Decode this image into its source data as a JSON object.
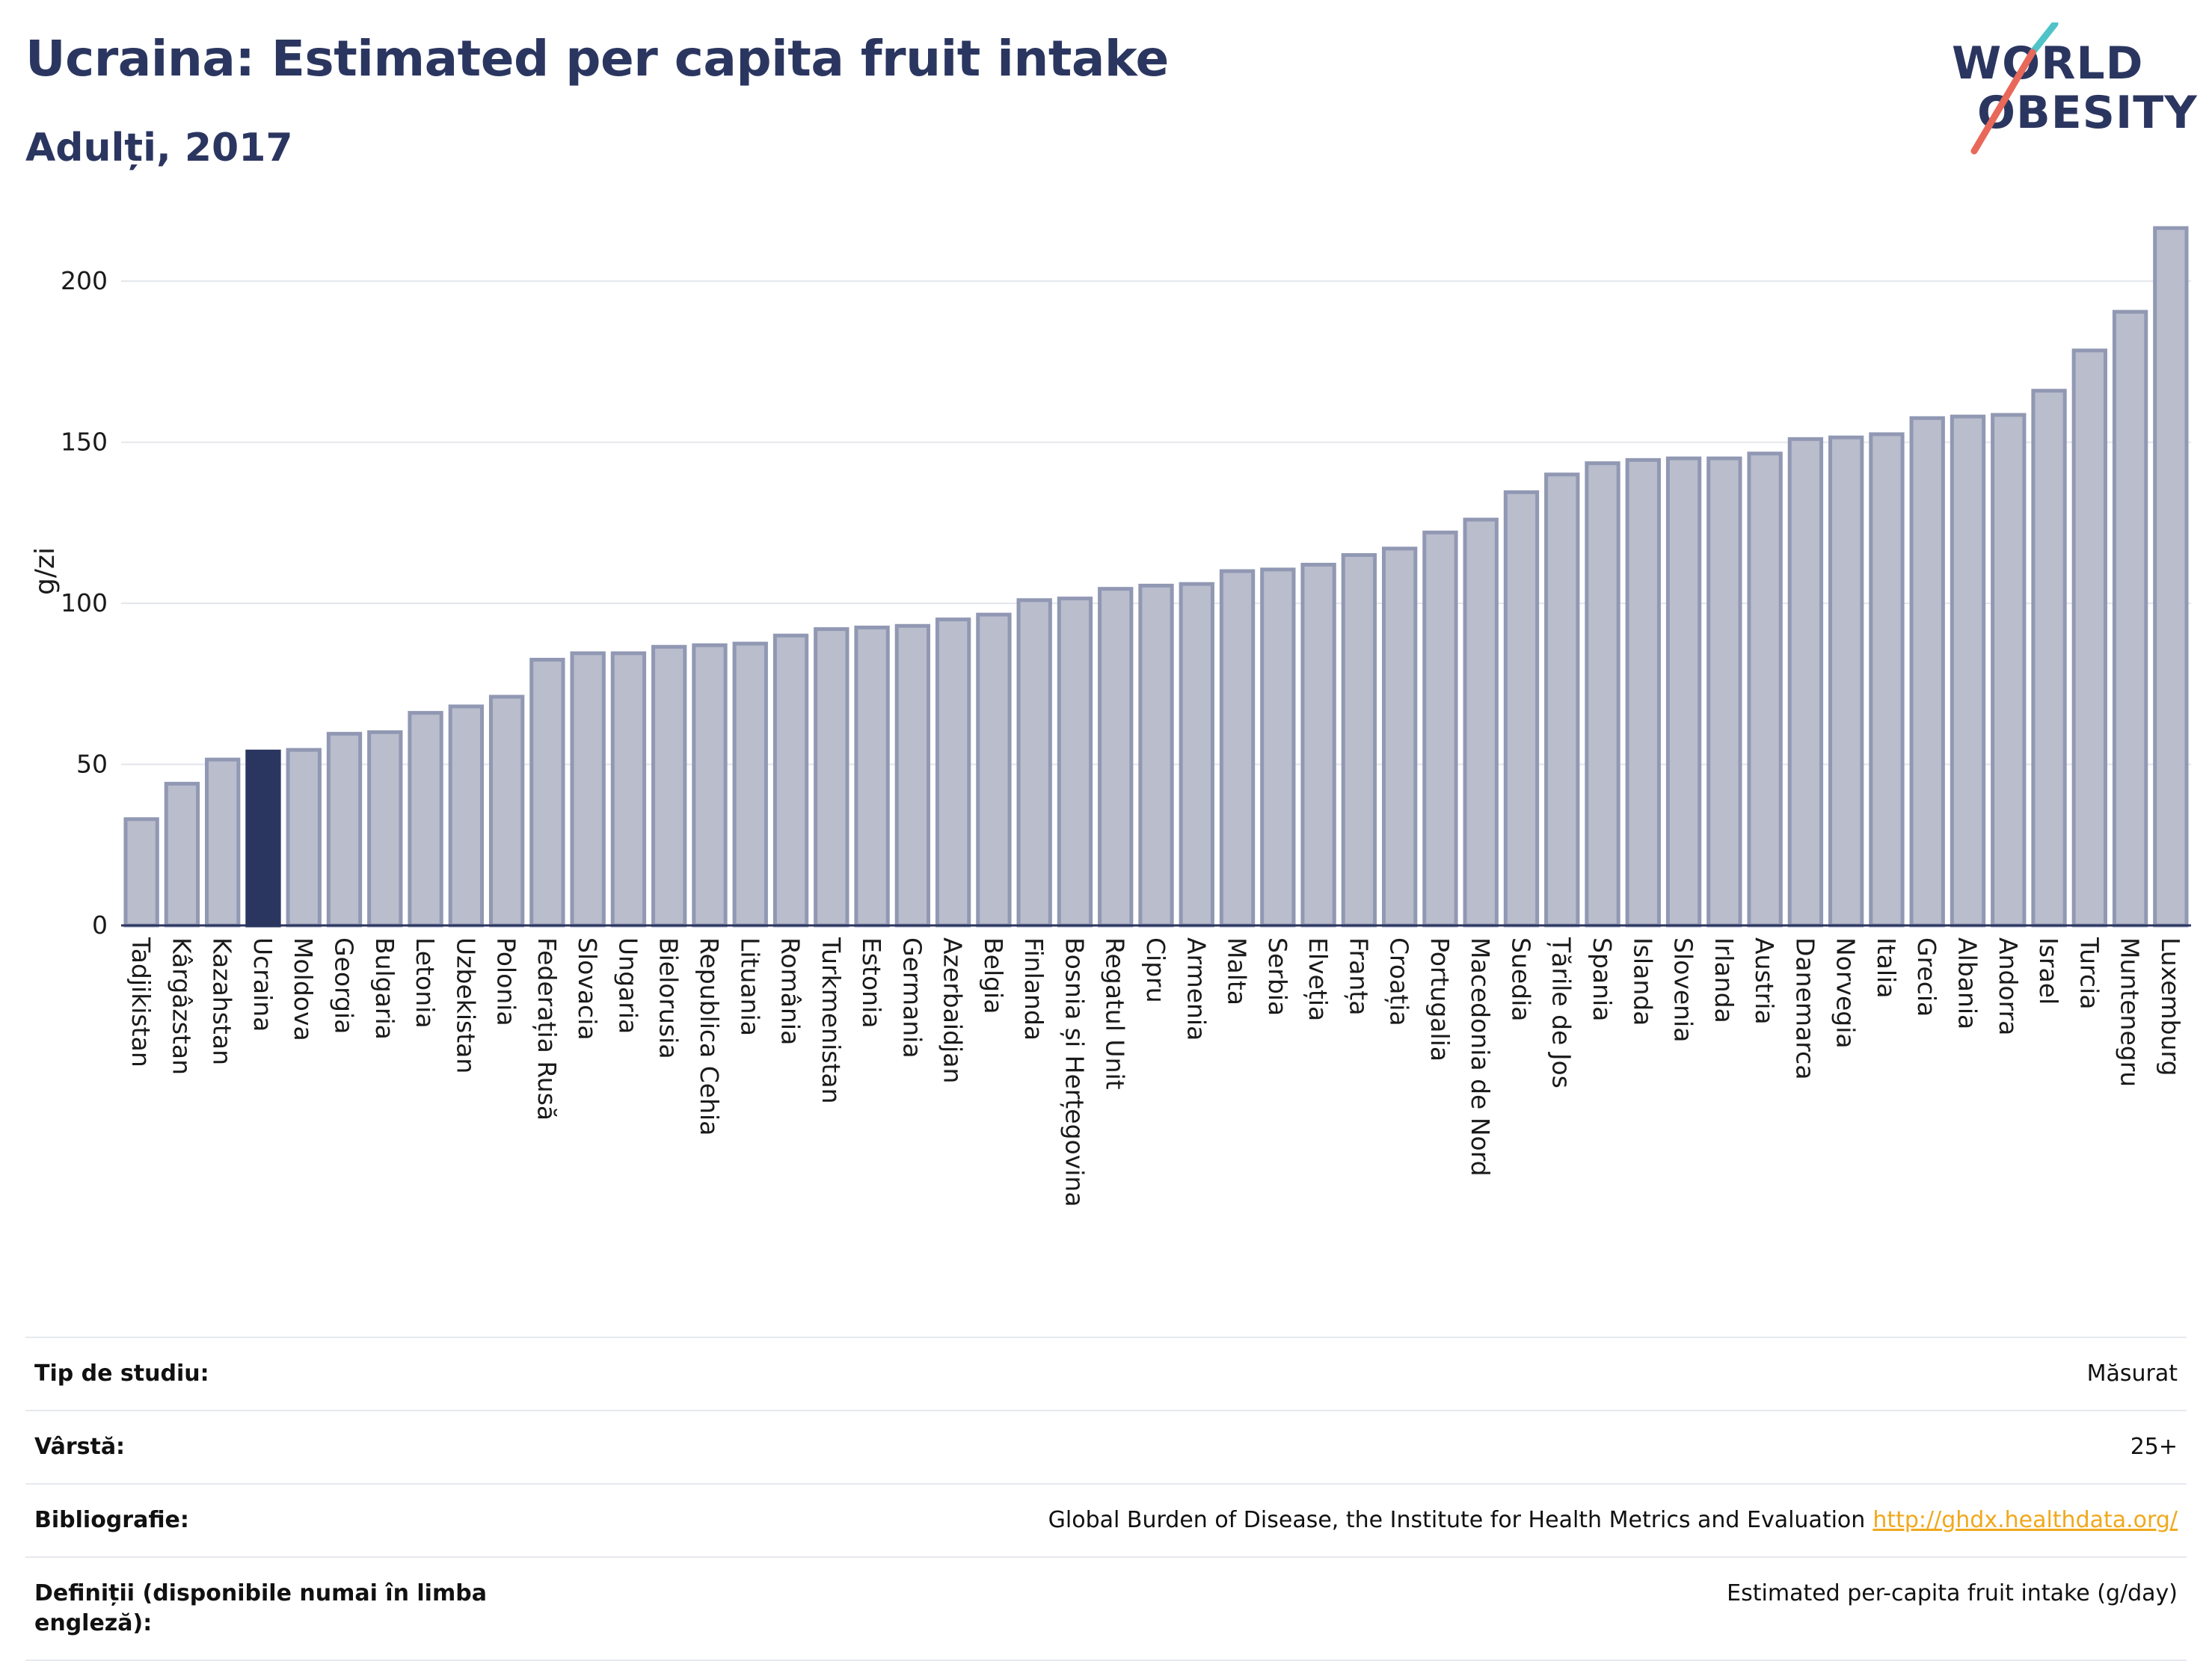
{
  "header": {
    "title": "Ucraina: Estimated per capita fruit intake",
    "subtitle": "Adulți, 2017"
  },
  "logo": {
    "line1": "WORLD",
    "line2": "OBESITY",
    "slash_colors": [
      "#4fc3c8",
      "#e8685a"
    ]
  },
  "colors": {
    "bar_fill": "#b9bdcc",
    "bar_stroke": "#9198b3",
    "highlight": "#2b3660",
    "grid": "#e3e6eb",
    "axis": "#2b3660"
  },
  "chart_data": {
    "type": "bar",
    "title": "Ucraina: Estimated per capita fruit intake",
    "subtitle": "Adulți, 2017",
    "xlabel": "",
    "ylabel": "g/zi",
    "ylim": [
      0,
      220
    ],
    "yticks": [
      0,
      50,
      100,
      150,
      200
    ],
    "grid": true,
    "highlight": "Ucraina",
    "categories": [
      "Tadjikistan",
      "Kârgâzstan",
      "Kazahstan",
      "Ucraina",
      "Moldova",
      "Georgia",
      "Bulgaria",
      "Letonia",
      "Uzbekistan",
      "Polonia",
      "Federația Rusă",
      "Slovacia",
      "Ungaria",
      "Bielorusia",
      "Republica Cehia",
      "Lituania",
      "România",
      "Turkmenistan",
      "Estonia",
      "Germania",
      "Azerbaidjan",
      "Belgia",
      "Finlanda",
      "Bosnia și Herțegovina",
      "Regatul Unit",
      "Cipru",
      "Armenia",
      "Malta",
      "Serbia",
      "Elveția",
      "Franța",
      "Croația",
      "Portugalia",
      "Macedonia de Nord",
      "Suedia",
      "Țările de Jos",
      "Spania",
      "Islanda",
      "Slovenia",
      "Irlanda",
      "Austria",
      "Danemarca",
      "Norvegia",
      "Italia",
      "Grecia",
      "Albania",
      "Andorra",
      "Israel",
      "Turcia",
      "Muntenegru",
      "Luxemburg"
    ],
    "values": [
      33,
      44,
      51.5,
      54,
      54.5,
      59.5,
      60,
      66,
      68,
      71,
      82.5,
      84.5,
      84.5,
      86.5,
      87,
      87.5,
      90,
      92,
      92.5,
      93,
      95,
      96.5,
      101,
      101.5,
      104.5,
      105.5,
      106,
      110,
      110.5,
      112,
      115,
      117,
      122,
      126,
      134.5,
      140,
      143.5,
      144.5,
      145,
      145,
      146.5,
      151,
      151.5,
      152.5,
      157.5,
      158,
      158.5,
      166,
      178.5,
      190.5,
      216.5
    ]
  },
  "info": [
    {
      "key": "Tip de studiu:",
      "value": "Măsurat"
    },
    {
      "key": "Vârstă:",
      "value": "25+"
    },
    {
      "key": "Bibliografie:",
      "value": "Global Burden of Disease, the Institute for Health Metrics and Evaluation",
      "link": "http://ghdx.healthdata.org/"
    },
    {
      "key": "Definiții (disponibile numai în limba engleză):",
      "value": "Estimated per-capita fruit intake (g/day)"
    }
  ]
}
